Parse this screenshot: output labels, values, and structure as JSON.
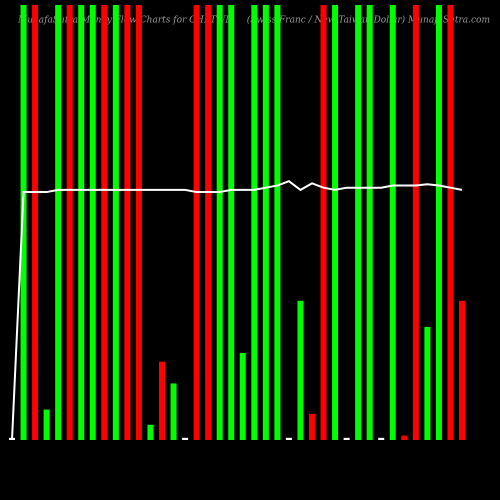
{
  "chart_data": {
    "type": "bar",
    "title": "MunafaSutra Money Flow Charts for CHFTWD",
    "subtitle": "(Swiss Franc / New Taiwan Dollar) MunafaSutra.com",
    "ylim": [
      0,
      100
    ],
    "series": [
      {
        "name": "Money Flow",
        "type": "bar",
        "colors": [
          "#ffffff",
          "#00ff00",
          "#ff0000",
          "#00ff00",
          "#00ff00",
          "#ff0000",
          "#00ff00",
          "#00ff00",
          "#ff0000",
          "#00ff00",
          "#ff0000",
          "#ff0000",
          "#00ff00",
          "#ff0000",
          "#00ff00",
          "#ffffff",
          "#ff0000",
          "#ff0000",
          "#00ff00",
          "#00ff00",
          "#00ff00",
          "#00ff00",
          "#00ff00",
          "#00ff00",
          "#ffffff",
          "#00ff00",
          "#ff0000",
          "#ff0000",
          "#00ff00",
          "#ffffff",
          "#00ff00",
          "#00ff00",
          "#ffffff",
          "#00ff00",
          "#ff0000",
          "#ff0000",
          "#00ff00",
          "#00ff00",
          "#ff0000",
          "#ff0000"
        ],
        "values": [
          0.5,
          100,
          100,
          7,
          100,
          100,
          100,
          100,
          100,
          100,
          100,
          100,
          3.5,
          18,
          13,
          0.5,
          100,
          100,
          100,
          100,
          20,
          100,
          100,
          100,
          0.5,
          32,
          6,
          100,
          100,
          0.5,
          100,
          100,
          0.5,
          100,
          1,
          100,
          26,
          100,
          100,
          32
        ]
      },
      {
        "name": "Price",
        "type": "line",
        "color": "#ffffff",
        "values": [
          0,
          57,
          57,
          57,
          57.5,
          57.5,
          57.5,
          57.5,
          57.5,
          57.5,
          57.5,
          57.5,
          57.5,
          57.5,
          57.5,
          57.5,
          57,
          57,
          57,
          57.5,
          57.5,
          57.5,
          58,
          58.5,
          59.5,
          57.5,
          59,
          58,
          57.5,
          58,
          58,
          58,
          58,
          58.5,
          58.5,
          58.5,
          58.8,
          58.5,
          58,
          57.5
        ]
      }
    ]
  }
}
